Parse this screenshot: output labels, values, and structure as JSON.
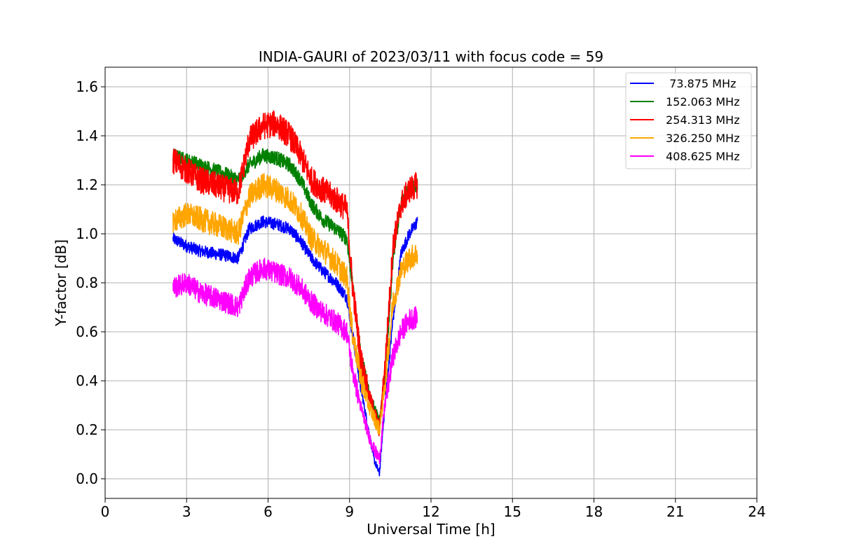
{
  "chart_data": {
    "type": "line",
    "title": "INDIA-GAURI of 2023/03/11 with focus code = 59",
    "xlabel": "Universal Time [h]",
    "ylabel": "Y-factor [dB]",
    "xlim": [
      0,
      24
    ],
    "ylim": [
      -0.08,
      1.68
    ],
    "xticks": [
      0,
      3,
      6,
      9,
      12,
      15,
      18,
      21,
      24
    ],
    "yticks": [
      0.0,
      0.2,
      0.4,
      0.6,
      0.8,
      1.0,
      1.2,
      1.4,
      1.6
    ],
    "ytick_labels": [
      "0.0",
      "0.2",
      "0.4",
      "0.6",
      "0.8",
      "1.0",
      "1.2",
      "1.4",
      "1.6"
    ],
    "grid": true,
    "legend_position": "top-right",
    "series": [
      {
        "name": " 73.875 MHz",
        "color": "#0000ff",
        "noise": 0.025,
        "x": [
          2.5,
          3.0,
          3.5,
          4.0,
          4.5,
          4.9,
          5.3,
          5.8,
          6.3,
          6.8,
          7.2,
          7.6,
          8.0,
          8.5,
          8.9,
          9.1,
          9.4,
          9.7,
          9.9,
          10.1,
          10.3,
          10.6,
          10.9,
          11.2,
          11.5
        ],
        "y": [
          0.98,
          0.95,
          0.93,
          0.92,
          0.91,
          0.9,
          1.02,
          1.05,
          1.04,
          1.02,
          0.97,
          0.9,
          0.85,
          0.8,
          0.74,
          0.6,
          0.38,
          0.2,
          0.08,
          0.02,
          0.3,
          0.65,
          0.92,
          1.0,
          1.05
        ]
      },
      {
        "name": "152.063 MHz",
        "color": "#008000",
        "noise": 0.03,
        "x": [
          2.5,
          3.0,
          3.5,
          4.0,
          4.5,
          4.9,
          5.3,
          5.8,
          6.3,
          6.8,
          7.2,
          7.6,
          8.0,
          8.5,
          8.9,
          9.1,
          9.4,
          9.7,
          9.9,
          10.1,
          10.3,
          10.6,
          10.9,
          11.2,
          11.5
        ],
        "y": [
          1.32,
          1.3,
          1.28,
          1.26,
          1.24,
          1.22,
          1.28,
          1.32,
          1.31,
          1.28,
          1.22,
          1.12,
          1.06,
          1.02,
          0.98,
          0.8,
          0.52,
          0.36,
          0.3,
          0.24,
          0.4,
          0.9,
          1.12,
          1.18,
          1.2
        ]
      },
      {
        "name": "254.313 MHz",
        "color": "#ff0000",
        "noise": 0.055,
        "x": [
          2.5,
          3.0,
          3.5,
          4.0,
          4.5,
          4.9,
          5.3,
          5.8,
          6.3,
          6.8,
          7.2,
          7.6,
          8.0,
          8.5,
          8.9,
          9.1,
          9.4,
          9.7,
          9.9,
          10.1,
          10.3,
          10.6,
          10.9,
          11.2,
          11.5
        ],
        "y": [
          1.3,
          1.26,
          1.22,
          1.2,
          1.18,
          1.17,
          1.38,
          1.44,
          1.45,
          1.4,
          1.32,
          1.22,
          1.18,
          1.14,
          1.1,
          0.8,
          0.5,
          0.34,
          0.28,
          0.2,
          0.45,
          0.95,
          1.12,
          1.18,
          1.2
        ]
      },
      {
        "name": "326.250 MHz",
        "color": "#ffa500",
        "noise": 0.05,
        "x": [
          2.5,
          3.0,
          3.5,
          4.0,
          4.5,
          4.9,
          5.3,
          5.8,
          6.3,
          6.8,
          7.2,
          7.6,
          8.0,
          8.5,
          8.9,
          9.1,
          9.4,
          9.7,
          9.9,
          10.1,
          10.3,
          10.6,
          10.9,
          11.2,
          11.5
        ],
        "y": [
          1.05,
          1.08,
          1.06,
          1.04,
          1.02,
          1.0,
          1.15,
          1.2,
          1.18,
          1.14,
          1.08,
          0.98,
          0.94,
          0.88,
          0.82,
          0.6,
          0.42,
          0.3,
          0.25,
          0.2,
          0.38,
          0.72,
          0.85,
          0.9,
          0.92
        ]
      },
      {
        "name": "408.625 MHz",
        "color": "#ff00ff",
        "noise": 0.045,
        "x": [
          2.5,
          3.0,
          3.5,
          4.0,
          4.5,
          4.9,
          5.3,
          5.8,
          6.3,
          6.8,
          7.2,
          7.6,
          8.0,
          8.5,
          8.9,
          9.1,
          9.4,
          9.7,
          9.9,
          10.1,
          10.3,
          10.6,
          10.9,
          11.2,
          11.5
        ],
        "y": [
          0.78,
          0.8,
          0.76,
          0.74,
          0.72,
          0.7,
          0.82,
          0.86,
          0.84,
          0.82,
          0.78,
          0.72,
          0.68,
          0.64,
          0.6,
          0.45,
          0.3,
          0.18,
          0.12,
          0.08,
          0.3,
          0.5,
          0.6,
          0.65,
          0.66
        ]
      }
    ]
  }
}
